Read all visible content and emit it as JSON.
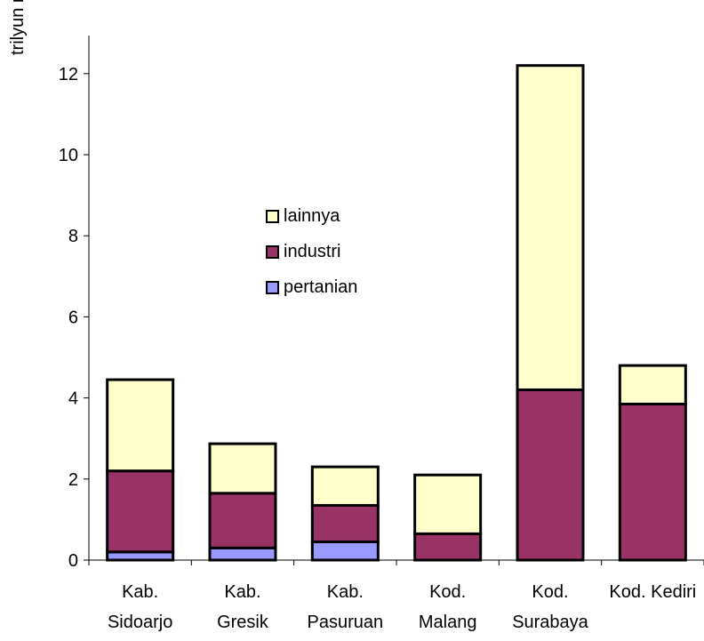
{
  "chart_data": {
    "type": "bar",
    "stacked": true,
    "ylabel": "trilyun rupiah",
    "ylim": [
      0,
      13
    ],
    "yticks": [
      0,
      2,
      4,
      6,
      8,
      10,
      12
    ],
    "grid": false,
    "legend_position": "center-left",
    "categories": [
      [
        "Kab.",
        "Sidoarjo"
      ],
      [
        "Kab.",
        "Gresik"
      ],
      [
        "Kab.",
        "Pasuruan"
      ],
      [
        "Kod.",
        "Malang"
      ],
      [
        "Kod.",
        "Surabaya"
      ],
      [
        "Kod. Kediri"
      ]
    ],
    "series": [
      {
        "name": "pertanian",
        "color": "#9999ff",
        "values": [
          0.2,
          0.3,
          0.45,
          0.0,
          0.0,
          0.0
        ]
      },
      {
        "name": "industri",
        "color": "#993366",
        "values": [
          2.0,
          1.35,
          0.9,
          0.65,
          4.2,
          3.85
        ]
      },
      {
        "name": "lainnya",
        "color": "#ffffcc",
        "values": [
          2.25,
          1.22,
          0.95,
          1.45,
          8.0,
          0.95
        ]
      }
    ],
    "legend_order": [
      "lainnya",
      "industri",
      "pertanian"
    ]
  }
}
